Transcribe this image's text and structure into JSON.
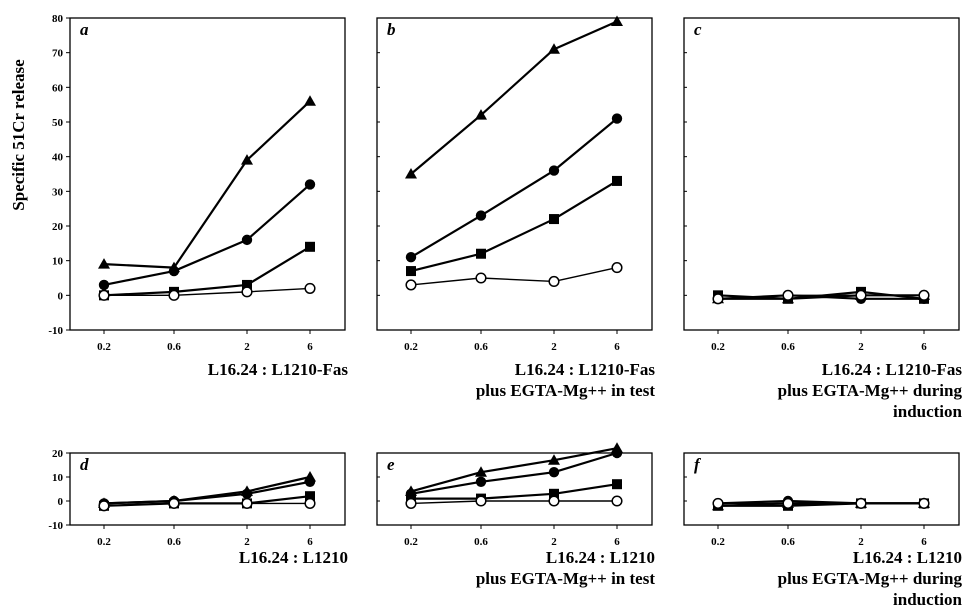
{
  "figure": {
    "y_axis_label": "Specific 51Cr release"
  },
  "chart_data": [
    {
      "panel": "a",
      "type": "line",
      "caption": [
        "L16.24 : L1210-Fas"
      ],
      "x_scale": "log",
      "x": [
        0.2,
        0.6,
        2,
        6
      ],
      "x_ticks": [
        "0.2",
        "0.6",
        "2",
        "6"
      ],
      "ylim": [
        -10,
        80
      ],
      "y_ticks": [
        "-10",
        "0",
        "10",
        "20",
        "30",
        "40",
        "50",
        "60",
        "70",
        "80"
      ],
      "series": [
        {
          "marker": "triangle",
          "values": [
            9,
            8,
            39,
            56
          ]
        },
        {
          "marker": "circle",
          "values": [
            3,
            7,
            16,
            32
          ]
        },
        {
          "marker": "square",
          "values": [
            0,
            1,
            3,
            14
          ]
        },
        {
          "marker": "open-circle",
          "values": [
            0,
            0,
            1,
            2
          ]
        }
      ]
    },
    {
      "panel": "b",
      "type": "line",
      "caption": [
        "L16.24 : L1210-Fas",
        "plus EGTA-Mg++ in test"
      ],
      "x_scale": "log",
      "x": [
        0.2,
        0.6,
        2,
        6
      ],
      "x_ticks": [
        "0.2",
        "0.6",
        "2",
        "6"
      ],
      "ylim": [
        -10,
        80
      ],
      "series": [
        {
          "marker": "triangle",
          "values": [
            35,
            52,
            71,
            79
          ]
        },
        {
          "marker": "circle",
          "values": [
            11,
            23,
            36,
            51
          ]
        },
        {
          "marker": "square",
          "values": [
            7,
            12,
            22,
            33
          ]
        },
        {
          "marker": "open-circle",
          "values": [
            3,
            5,
            4,
            8
          ]
        }
      ]
    },
    {
      "panel": "c",
      "type": "line",
      "caption": [
        "L16.24 : L1210-Fas",
        "plus EGTA-Mg++ during",
        "induction"
      ],
      "x_scale": "log",
      "x": [
        0.2,
        0.6,
        2,
        6
      ],
      "x_ticks": [
        "0.2",
        "0.6",
        "2",
        "6"
      ],
      "ylim": [
        -10,
        80
      ],
      "series": [
        {
          "marker": "triangle",
          "values": [
            -1,
            -1,
            0,
            0
          ]
        },
        {
          "marker": "circle",
          "values": [
            -1,
            0,
            -1,
            -1
          ]
        },
        {
          "marker": "square",
          "values": [
            0,
            -1,
            1,
            -1
          ]
        },
        {
          "marker": "open-circle",
          "values": [
            -1,
            0,
            0,
            0
          ]
        }
      ]
    },
    {
      "panel": "d",
      "type": "line",
      "caption": [
        "L16.24 : L1210"
      ],
      "x_scale": "log",
      "x": [
        0.2,
        0.6,
        2,
        6
      ],
      "x_ticks": [
        "0.2",
        "0.6",
        "2",
        "6"
      ],
      "ylim": [
        -10,
        20
      ],
      "y_ticks": [
        "-10",
        "0",
        "10",
        "20"
      ],
      "series": [
        {
          "marker": "triangle",
          "values": [
            -1,
            0,
            4,
            10
          ]
        },
        {
          "marker": "circle",
          "values": [
            -1,
            0,
            3,
            8
          ]
        },
        {
          "marker": "square",
          "values": [
            -2,
            -1,
            -1,
            2
          ]
        },
        {
          "marker": "open-circle",
          "values": [
            -2,
            -1,
            -1,
            -1
          ]
        }
      ]
    },
    {
      "panel": "e",
      "type": "line",
      "caption": [
        "L16.24 : L1210",
        "plus EGTA-Mg++ in test"
      ],
      "x_scale": "log",
      "x": [
        0.2,
        0.6,
        2,
        6
      ],
      "x_ticks": [
        "0.2",
        "0.6",
        "2",
        "6"
      ],
      "ylim": [
        -10,
        20
      ],
      "series": [
        {
          "marker": "triangle",
          "values": [
            4,
            12,
            17,
            22
          ]
        },
        {
          "marker": "circle",
          "values": [
            3,
            8,
            12,
            20
          ]
        },
        {
          "marker": "square",
          "values": [
            1,
            1,
            3,
            7
          ]
        },
        {
          "marker": "open-circle",
          "values": [
            -1,
            0,
            0,
            0
          ]
        }
      ]
    },
    {
      "panel": "f",
      "type": "line",
      "caption": [
        "L16.24 : L1210",
        "plus EGTA-Mg++ during",
        "induction"
      ],
      "x_scale": "log",
      "x": [
        0.2,
        0.6,
        2,
        6
      ],
      "x_ticks": [
        "0.2",
        "0.6",
        "2",
        "6"
      ],
      "ylim": [
        -10,
        20
      ],
      "series": [
        {
          "marker": "triangle",
          "values": [
            -2,
            -1,
            -1,
            -1
          ]
        },
        {
          "marker": "circle",
          "values": [
            -1,
            0,
            -1,
            -1
          ]
        },
        {
          "marker": "square",
          "values": [
            -2,
            -2,
            -1,
            -1
          ]
        },
        {
          "marker": "open-circle",
          "values": [
            -1,
            -1,
            -1,
            -1
          ]
        }
      ]
    }
  ]
}
